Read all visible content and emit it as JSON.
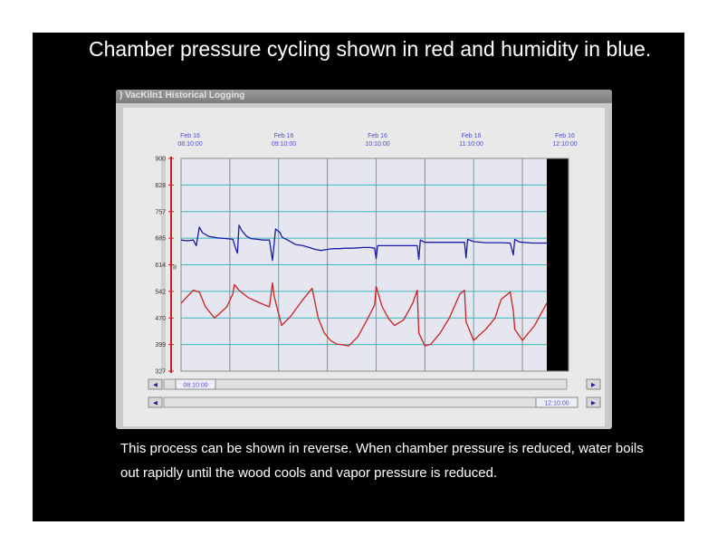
{
  "slide": {
    "title": "Chamber pressure cycling shown in red and humidity in blue.",
    "caption": "This process can be shown in reverse. When chamber pressure is reduced, water boils out rapidly until the wood cools and vapor pressure is reduced."
  },
  "window": {
    "title": ") VacKiln1 Historical Logging",
    "scroll_start_label": "08:10:00",
    "scroll_end_label": "12:10:00",
    "left_arrow": "◄",
    "right_arrow": "►"
  },
  "colors": {
    "humidity": "#1a1aa6",
    "pressure": "#cc1f1f",
    "grid": "#3cb8b8",
    "plot_bg": "#e6e6f0",
    "axis_label": "#5050d0"
  },
  "chart_data": {
    "type": "line",
    "title": "",
    "xlabel": "",
    "ylabel": "",
    "x_tick_labels": [
      {
        "date": "Feb 16",
        "time": "08:10:00"
      },
      {
        "date": "Feb 16",
        "time": "09:10:00"
      },
      {
        "date": "Feb 16",
        "time": "10:10:00"
      },
      {
        "date": "Feb 16",
        "time": "11:10:00"
      },
      {
        "date": "Feb 16",
        "time": "12:10:00"
      }
    ],
    "y_tick_labels": [
      "900",
      "828",
      "757",
      "685",
      "614",
      "542",
      "470",
      "399",
      "327"
    ],
    "ylim": [
      327,
      900
    ],
    "xlim": [
      0,
      240
    ],
    "grid": true,
    "series": [
      {
        "color": "#1a1aa6",
        "x": [
          0,
          4,
          8,
          10,
          12,
          14,
          18,
          24,
          30,
          34,
          36,
          37,
          38,
          40,
          43,
          46,
          50,
          54,
          58,
          60,
          62,
          65,
          66,
          67,
          70,
          75,
          80,
          84,
          88,
          92,
          96,
          100,
          104,
          108,
          112,
          116,
          120,
          124,
          127,
          128,
          129,
          132,
          136,
          140,
          144,
          148,
          152,
          155,
          156,
          157,
          160,
          168,
          175,
          183,
          186,
          187,
          188,
          192,
          200,
          210,
          216,
          218,
          219,
          222,
          230,
          240
        ],
        "y": [
          680,
          678,
          680,
          665,
          715,
          700,
          690,
          686,
          684,
          682,
          655,
          645,
          720,
          705,
          690,
          684,
          682,
          680,
          680,
          625,
          710,
          700,
          690,
          686,
          680,
          668,
          665,
          660,
          655,
          652,
          655,
          657,
          657,
          658,
          658,
          659,
          660,
          660,
          658,
          630,
          665,
          665,
          665,
          665,
          665,
          665,
          665,
          665,
          628,
          680,
          674,
          674,
          674,
          674,
          674,
          632,
          682,
          676,
          673,
          673,
          672,
          640,
          682,
          675,
          672,
          672
        ]
      },
      {
        "color": "#cc1f1f",
        "x": [
          0,
          8,
          12,
          16,
          22,
          30,
          34,
          35,
          38,
          44,
          52,
          58,
          60,
          61,
          66,
          72,
          80,
          86,
          90,
          94,
          98,
          102,
          106,
          110,
          116,
          122,
          127,
          128,
          132,
          136,
          140,
          146,
          152,
          155,
          156,
          160,
          164,
          170,
          176,
          183,
          186,
          187,
          192,
          200,
          206,
          210,
          216,
          218,
          219,
          224,
          232,
          240
        ],
        "y": [
          510,
          545,
          540,
          500,
          470,
          500,
          535,
          560,
          545,
          525,
          510,
          500,
          565,
          530,
          450,
          475,
          520,
          550,
          470,
          430,
          410,
          400,
          398,
          395,
          420,
          465,
          505,
          555,
          500,
          470,
          450,
          465,
          510,
          545,
          430,
          395,
          400,
          430,
          470,
          535,
          545,
          460,
          410,
          440,
          470,
          520,
          540,
          490,
          440,
          410,
          450,
          510
        ]
      }
    ]
  }
}
